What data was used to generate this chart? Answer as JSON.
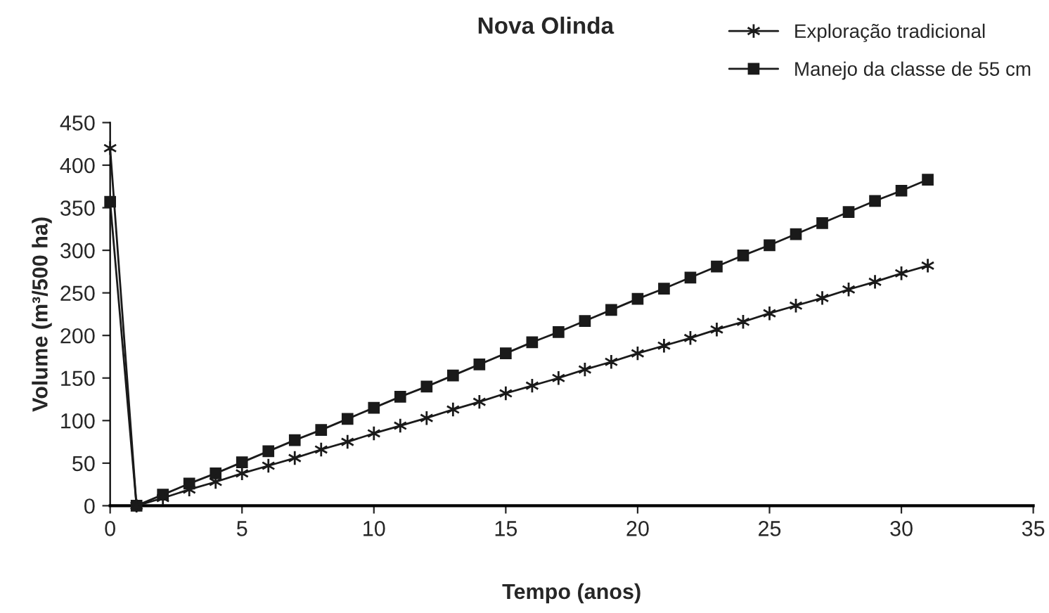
{
  "chart_data": {
    "type": "line",
    "title": "Nova Olinda",
    "xlabel": "Tempo (anos)",
    "ylabel": "Volume (m³/500 ha)",
    "series": [
      {
        "name": "Exploração tradicional",
        "color": "#1a1a1a",
        "marker": "cross",
        "x": [
          0,
          1,
          2,
          3,
          4,
          5,
          6,
          7,
          8,
          9,
          10,
          11,
          12,
          13,
          14,
          15,
          16,
          17,
          18,
          19,
          20,
          21,
          22,
          23,
          24,
          25,
          26,
          27,
          28,
          29,
          30,
          31
        ],
        "values": [
          420,
          0,
          9,
          19,
          28,
          38,
          47,
          56,
          66,
          75,
          85,
          94,
          103,
          113,
          122,
          132,
          141,
          150,
          160,
          169,
          179,
          188,
          197,
          207,
          216,
          226,
          235,
          244,
          254,
          263,
          273,
          282
        ]
      },
      {
        "name": "Manejo da classe de 55 cm",
        "color": "#1a1a1a",
        "marker": "square",
        "x": [
          0,
          1,
          2,
          3,
          4,
          5,
          6,
          7,
          8,
          9,
          10,
          11,
          12,
          13,
          14,
          15,
          16,
          17,
          18,
          19,
          20,
          21,
          22,
          23,
          24,
          25,
          26,
          27,
          28,
          29,
          30,
          31
        ],
        "values": [
          357,
          0,
          13,
          26,
          38,
          51,
          64,
          77,
          89,
          102,
          115,
          128,
          140,
          153,
          166,
          179,
          192,
          204,
          217,
          230,
          243,
          255,
          268,
          281,
          294,
          306,
          319,
          332,
          345,
          358,
          370,
          383
        ]
      }
    ],
    "xlim": [
      0,
      35
    ],
    "xticks": [
      0,
      5,
      10,
      15,
      20,
      25,
      30,
      35
    ],
    "ylim": [
      0,
      450
    ],
    "yticks": [
      0,
      50,
      100,
      150,
      200,
      250,
      300,
      350,
      400,
      450
    ],
    "grid": false,
    "legend": "top right",
    "line_style": "solid"
  }
}
